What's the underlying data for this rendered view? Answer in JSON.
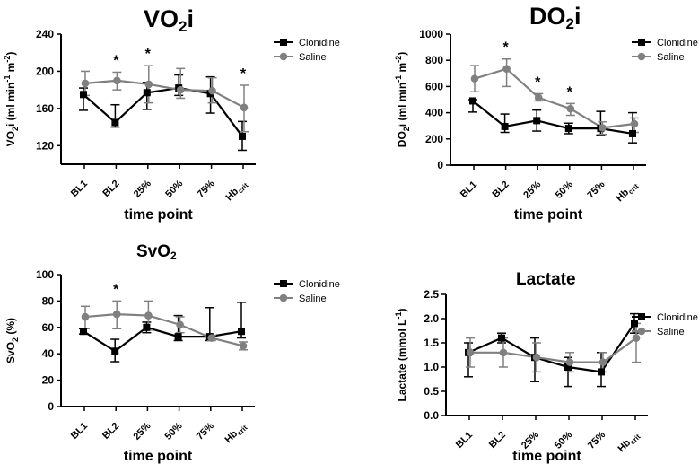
{
  "chart_data": [
    {
      "type": "line",
      "title": "VO2i",
      "ylabel": "VO2i (ml min-1 m-2)",
      "xlabel": "time point",
      "categories": [
        "BL1",
        "BL2",
        "25%",
        "50%",
        "75%",
        "Hbcrit"
      ],
      "ylim": [
        100,
        240
      ],
      "yticks": [
        120,
        160,
        200,
        240
      ],
      "series": [
        {
          "name": "Clonidine",
          "color": "#000000",
          "marker": "square",
          "values": [
            175,
            145,
            177,
            182,
            176,
            130
          ],
          "err_low": [
            158,
            140,
            159,
            174,
            155,
            115
          ],
          "err_high": [
            182,
            164,
            188,
            196,
            194,
            146
          ]
        },
        {
          "name": "Saline",
          "color": "#808080",
          "marker": "circle",
          "values": [
            187,
            190,
            186,
            180,
            179,
            161
          ],
          "err_low": [
            174,
            180,
            166,
            171,
            166,
            135
          ],
          "err_high": [
            200,
            199,
            206,
            203,
            193,
            185
          ]
        }
      ],
      "significance": [
        "",
        "*",
        "*",
        "",
        "",
        "*"
      ]
    },
    {
      "type": "line",
      "title": "DO2i",
      "ylabel": "DO2i (ml min-1 m-2)",
      "xlabel": "time point",
      "categories": [
        "BL1",
        "BL2",
        "25%",
        "50%",
        "75%",
        "Hbcrit"
      ],
      "ylim": [
        0,
        1000
      ],
      "yticks": [
        0,
        200,
        400,
        600,
        800,
        1000
      ],
      "series": [
        {
          "name": "Clonidine",
          "color": "#000000",
          "marker": "square",
          "values": [
            490,
            295,
            340,
            280,
            280,
            240
          ],
          "err_low": [
            405,
            250,
            260,
            240,
            230,
            170
          ],
          "err_high": [
            500,
            390,
            420,
            320,
            410,
            400
          ]
        },
        {
          "name": "Saline",
          "color": "#808080",
          "marker": "circle",
          "values": [
            660,
            735,
            515,
            430,
            285,
            315
          ],
          "err_low": [
            560,
            600,
            490,
            380,
            235,
            250
          ],
          "err_high": [
            760,
            810,
            545,
            470,
            330,
            360
          ]
        }
      ],
      "significance": [
        "",
        "*",
        "*",
        "*",
        "",
        ""
      ]
    },
    {
      "type": "line",
      "title": "SvO2",
      "ylabel": "SvO2 (%)",
      "xlabel": "time point",
      "categories": [
        "BL1",
        "BL2",
        "25%",
        "50%",
        "75%",
        "Hbcrit"
      ],
      "ylim": [
        0,
        100
      ],
      "yticks": [
        0,
        20,
        40,
        60,
        80,
        100
      ],
      "series": [
        {
          "name": "Clonidine",
          "color": "#000000",
          "marker": "square",
          "values": [
            57,
            42,
            60,
            53,
            53,
            57
          ],
          "err_low": [
            55,
            34,
            56,
            50,
            50,
            52
          ],
          "err_high": [
            59,
            51,
            64,
            69,
            75,
            79
          ]
        },
        {
          "name": "Saline",
          "color": "#808080",
          "marker": "circle",
          "values": [
            68,
            70,
            69,
            62,
            52,
            46
          ],
          "err_low": [
            59,
            59,
            58,
            56,
            50,
            43
          ],
          "err_high": [
            76,
            80,
            80,
            68,
            54,
            49
          ]
        }
      ],
      "significance": [
        "",
        "*",
        "",
        "",
        "",
        ""
      ]
    },
    {
      "type": "line",
      "title": "Lactate",
      "ylabel": "Lactate (mmol L-1)",
      "xlabel": "time point",
      "categories": [
        "BL1",
        "BL2",
        "25%",
        "50%",
        "75%",
        "Hbcrit"
      ],
      "ylim": [
        0,
        2.5
      ],
      "yticks": [
        0.0,
        0.5,
        1.0,
        1.5,
        2.0,
        2.5
      ],
      "series": [
        {
          "name": "Clonidine",
          "color": "#000000",
          "marker": "square",
          "values": [
            1.3,
            1.6,
            1.2,
            1.0,
            0.9,
            1.9
          ],
          "err_low": [
            0.8,
            1.5,
            0.7,
            0.6,
            0.6,
            1.7
          ],
          "err_high": [
            1.5,
            1.7,
            1.6,
            1.2,
            1.3,
            2.1
          ]
        },
        {
          "name": "Saline",
          "color": "#808080",
          "marker": "circle",
          "values": [
            1.3,
            1.3,
            1.2,
            1.1,
            1.1,
            1.6
          ],
          "err_low": [
            1.0,
            1.0,
            0.9,
            0.9,
            0.9,
            1.1
          ],
          "err_high": [
            1.6,
            1.6,
            1.5,
            1.3,
            1.3,
            1.9
          ]
        }
      ],
      "significance": [
        "",
        "",
        "",
        "",
        "",
        ""
      ]
    }
  ]
}
